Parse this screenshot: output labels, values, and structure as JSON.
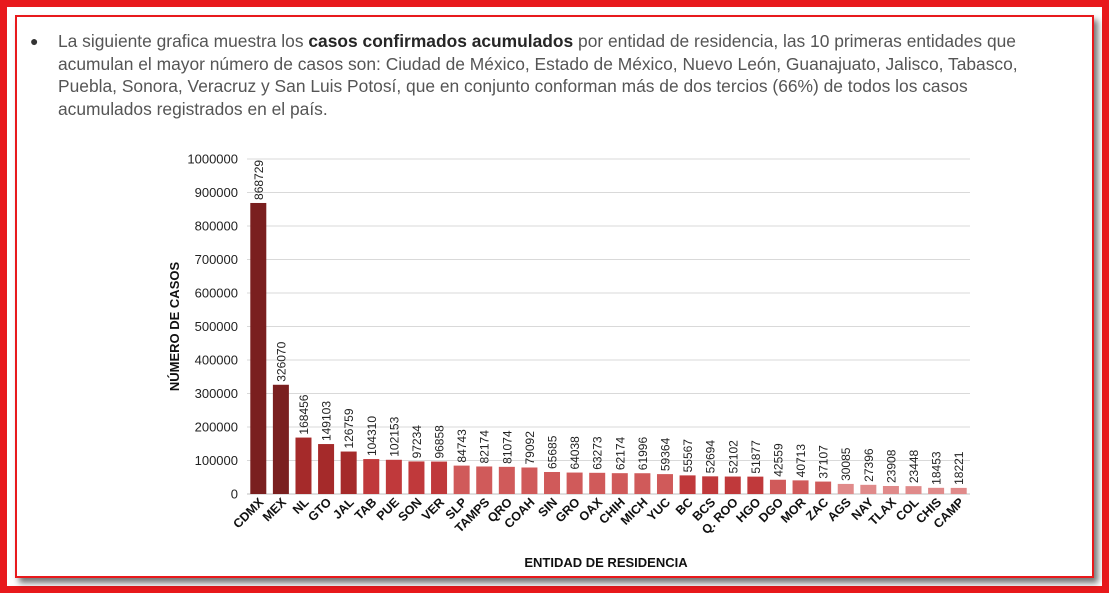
{
  "intro": {
    "before": "La siguiente grafica muestra los ",
    "bold": "casos confirmados acumulados",
    "after": " por entidad de residencia, las 10 primeras entidades que acumulan el mayor número de casos son: Ciudad de México, Estado de México, Nuevo León, Guanajuato, Jalisco, Tabasco, Puebla, Sonora, Veracruz y San Luis Potosí, que en conjunto conforman más de dos tercios (66%) de todos los casos acumulados registrados en el país."
  },
  "chart_data": {
    "type": "bar",
    "title": "",
    "xlabel": "ENTIDAD DE RESIDENCIA",
    "ylabel": "NÚMERO DE CASOS",
    "ylim": [
      0,
      1000000
    ],
    "yticks": [
      0,
      100000,
      200000,
      300000,
      400000,
      500000,
      600000,
      700000,
      800000,
      900000,
      1000000
    ],
    "grid": true,
    "legend": "none",
    "categories": [
      "CDMX",
      "MEX",
      "NL",
      "GTO",
      "JAL",
      "TAB",
      "PUE",
      "SON",
      "VER",
      "SLP",
      "TAMPS",
      "QRO",
      "COAH",
      "SIN",
      "GRO",
      "OAX",
      "CHIH",
      "MICH",
      "YUC",
      "BC",
      "BCS",
      "Q. ROO",
      "HGO",
      "DGO",
      "MOR",
      "ZAC",
      "AGS",
      "NAY",
      "TLAX",
      "COL",
      "CHIS",
      "CAMP"
    ],
    "values": [
      868729,
      326070,
      168456,
      149103,
      126759,
      104310,
      102153,
      97234,
      96858,
      84743,
      82174,
      81074,
      79092,
      65685,
      64038,
      63273,
      62174,
      61996,
      59364,
      55567,
      52694,
      52102,
      51877,
      42559,
      40713,
      37107,
      30085,
      27396,
      23908,
      23448,
      18453,
      18221
    ],
    "colors": [
      "#7a1f1f",
      "#7a1f1f",
      "#a52a2a",
      "#a52a2a",
      "#a52a2a",
      "#c0393b",
      "#c0393b",
      "#c0393b",
      "#c0393b",
      "#d05a5a",
      "#d05a5a",
      "#d05a5a",
      "#d05a5a",
      "#d05a5a",
      "#d05a5a",
      "#d05a5a",
      "#d05a5a",
      "#d05a5a",
      "#d05a5a",
      "#c0393b",
      "#c0393b",
      "#c0393b",
      "#c0393b",
      "#d05a5a",
      "#d05a5a",
      "#d05a5a",
      "#e08a8a",
      "#e08a8a",
      "#e08a8a",
      "#e08a8a",
      "#e08a8a",
      "#e08a8a"
    ]
  }
}
